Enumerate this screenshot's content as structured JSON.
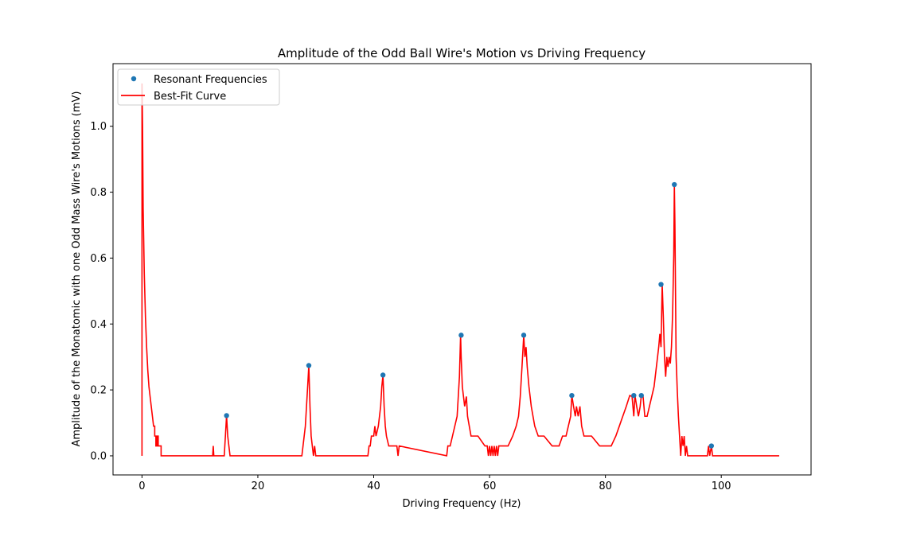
{
  "chart_data": {
    "type": "line",
    "title": "Amplitude of the Odd Ball Wire's Motion vs Driving Frequency",
    "xlabel": "Driving Frequency (Hz)",
    "ylabel": "Amplitude of the Monatomic with one Odd Mass Wire's Motions (mV)",
    "xlim": [
      -5,
      115.5
    ],
    "ylim": [
      -0.058,
      1.19
    ],
    "xticks": [
      0,
      20,
      40,
      60,
      80,
      100
    ],
    "yticks": [
      0.0,
      0.2,
      0.4,
      0.6,
      0.8,
      1.0
    ],
    "xtick_labels": [
      "0",
      "20",
      "40",
      "60",
      "80",
      "100"
    ],
    "ytick_labels": [
      "0.0",
      "0.2",
      "0.4",
      "0.6",
      "0.8",
      "1.0"
    ],
    "legend": {
      "location": "top-left",
      "entries": [
        "Resonant Frequencies",
        "Best-Fit Curve"
      ]
    },
    "grid": false,
    "series": [
      {
        "name": "Resonant Frequencies",
        "kind": "scatter",
        "color": "#1f77b4",
        "x": [
          14.6,
          28.8,
          41.6,
          55.1,
          65.9,
          74.2,
          84.9,
          86.2,
          89.6,
          91.9,
          98.3
        ],
        "y": [
          0.122,
          0.274,
          0.245,
          0.366,
          0.366,
          0.183,
          0.183,
          0.183,
          0.52,
          0.823,
          0.03
        ]
      },
      {
        "name": "Best-Fit Curve",
        "kind": "line",
        "color": "#ff0000",
        "x": [
          0,
          0,
          0.1,
          0.2,
          0.4,
          0.6,
          0.8,
          1.0,
          1.2,
          1.4,
          1.6,
          1.8,
          2.0,
          2.2,
          2.2,
          2.4,
          2.4,
          2.6,
          2.6,
          2.8,
          2.8,
          3.3,
          3.3,
          12.2,
          12.3,
          12.4,
          14.2,
          14.4,
          14.6,
          14.8,
          15.0,
          15.2,
          27.6,
          27.8,
          28.0,
          28.2,
          28.4,
          28.6,
          28.8,
          29.0,
          29.2,
          29.4,
          29.6,
          29.8,
          30.0,
          39.0,
          39.2,
          39.4,
          39.6,
          40.0,
          40.2,
          40.4,
          40.8,
          41.0,
          41.2,
          41.4,
          41.6,
          41.8,
          42.0,
          42.2,
          42.6,
          44.0,
          44.2,
          44.4,
          52.6,
          52.8,
          53.2,
          53.6,
          54.0,
          54.4,
          54.6,
          54.8,
          55.0,
          55.1,
          55.3,
          55.5,
          55.7,
          56.0,
          56.2,
          56.5,
          56.8,
          57.2,
          58.0,
          59.2,
          59.6,
          59.8,
          60.0,
          60.2,
          60.4,
          60.6,
          60.8,
          61.0,
          61.2,
          61.4,
          61.6,
          61.8,
          62.4,
          63.2,
          64.0,
          64.6,
          65.0,
          65.3,
          65.6,
          65.9,
          66.1,
          66.3,
          66.5,
          66.8,
          67.2,
          67.8,
          68.4,
          69.4,
          70.8,
          72.0,
          72.6,
          73.2,
          73.6,
          74.0,
          74.2,
          74.5,
          74.8,
          75.0,
          75.3,
          75.6,
          75.9,
          76.3,
          76.8,
          77.6,
          79.0,
          80.2,
          81.0,
          81.8,
          82.4,
          83.0,
          83.6,
          84.2,
          84.6,
          84.9,
          85.1,
          85.4,
          85.7,
          86.0,
          86.2,
          86.5,
          86.8,
          87.2,
          87.6,
          88.0,
          88.4,
          88.8,
          89.2,
          89.4,
          89.6,
          89.8,
          90.0,
          90.2,
          90.4,
          90.6,
          90.8,
          91.0,
          91.2,
          91.4,
          91.6,
          91.8,
          91.9,
          92.0,
          92.1,
          92.2,
          92.4,
          92.6,
          92.8,
          93.0,
          93.2,
          93.4,
          93.6,
          93.8,
          94.0,
          94.2,
          94.6,
          95.2,
          97.6,
          97.8,
          98.0,
          98.3,
          98.5,
          98.7,
          110.0
        ],
        "y": [
          0.0,
          1.13,
          1.0,
          0.75,
          0.55,
          0.42,
          0.33,
          0.26,
          0.21,
          0.18,
          0.15,
          0.12,
          0.09,
          0.09,
          0.06,
          0.06,
          0.03,
          0.03,
          0.06,
          0.06,
          0.03,
          0.03,
          0.0,
          0.0,
          0.03,
          0.0,
          0.0,
          0.06,
          0.122,
          0.06,
          0.03,
          0.0,
          0.0,
          0.03,
          0.06,
          0.09,
          0.15,
          0.21,
          0.274,
          0.15,
          0.06,
          0.03,
          0.0,
          0.03,
          0.0,
          0.0,
          0.03,
          0.03,
          0.06,
          0.06,
          0.09,
          0.06,
          0.09,
          0.12,
          0.15,
          0.21,
          0.245,
          0.15,
          0.09,
          0.06,
          0.03,
          0.03,
          0.0,
          0.03,
          0.0,
          0.03,
          0.03,
          0.06,
          0.09,
          0.12,
          0.18,
          0.24,
          0.366,
          0.3,
          0.21,
          0.18,
          0.15,
          0.18,
          0.12,
          0.09,
          0.06,
          0.06,
          0.06,
          0.03,
          0.03,
          0.0,
          0.03,
          0.0,
          0.03,
          0.0,
          0.03,
          0.0,
          0.03,
          0.0,
          0.03,
          0.03,
          0.03,
          0.03,
          0.06,
          0.09,
          0.12,
          0.18,
          0.27,
          0.366,
          0.3,
          0.33,
          0.27,
          0.21,
          0.15,
          0.09,
          0.06,
          0.06,
          0.03,
          0.03,
          0.06,
          0.06,
          0.09,
          0.12,
          0.183,
          0.15,
          0.12,
          0.15,
          0.12,
          0.15,
          0.09,
          0.06,
          0.06,
          0.06,
          0.03,
          0.03,
          0.03,
          0.06,
          0.09,
          0.12,
          0.15,
          0.183,
          0.18,
          0.12,
          0.183,
          0.15,
          0.12,
          0.15,
          0.183,
          0.18,
          0.12,
          0.12,
          0.15,
          0.18,
          0.21,
          0.27,
          0.33,
          0.37,
          0.33,
          0.52,
          0.42,
          0.3,
          0.24,
          0.3,
          0.27,
          0.3,
          0.28,
          0.33,
          0.43,
          0.61,
          0.823,
          0.7,
          0.5,
          0.3,
          0.2,
          0.12,
          0.06,
          0.0,
          0.06,
          0.03,
          0.06,
          0.0,
          0.03,
          0.0,
          0.0,
          0.0,
          0.0,
          0.03,
          0.0,
          0.03,
          0.0,
          0.0,
          0.0
        ]
      }
    ]
  }
}
